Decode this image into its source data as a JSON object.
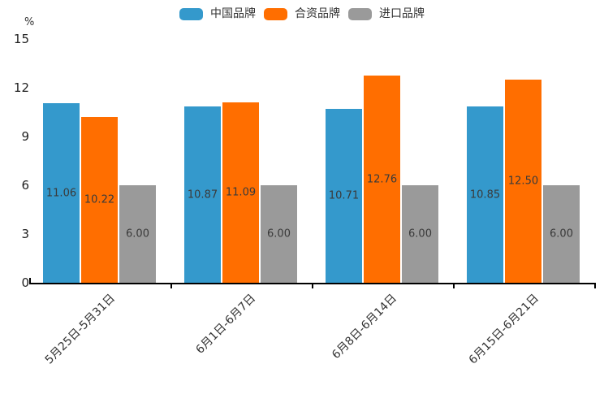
{
  "chart_data": {
    "type": "bar",
    "title": "",
    "y_unit": "%",
    "categories": [
      "5月25日-5月31日",
      "6月1日-6月7日",
      "6月8日-6月14日",
      "6月15日-6月21日"
    ],
    "series": [
      {
        "name": "中国品牌",
        "color": "#3499CC",
        "values": [
          11.06,
          10.87,
          10.71,
          10.85
        ]
      },
      {
        "name": "合资品牌",
        "color": "#FF6E00",
        "values": [
          10.22,
          11.09,
          12.76,
          12.5
        ]
      },
      {
        "name": "进口品牌",
        "color": "#9A9A9A",
        "values": [
          6.0,
          6.0,
          6.0,
          6.0
        ]
      }
    ],
    "value_labels": [
      [
        "11.06",
        "10.87",
        "10.71",
        "10.85"
      ],
      [
        "10.22",
        "11.09",
        "12.76",
        "12.50"
      ],
      [
        "6.00",
        "6.00",
        "6.00",
        "6.00"
      ]
    ],
    "yticks": [
      0,
      3,
      6,
      9,
      12,
      15
    ],
    "ylim": [
      0,
      15
    ],
    "legend_position": "top",
    "grid": false,
    "axis_color": "#000000"
  }
}
